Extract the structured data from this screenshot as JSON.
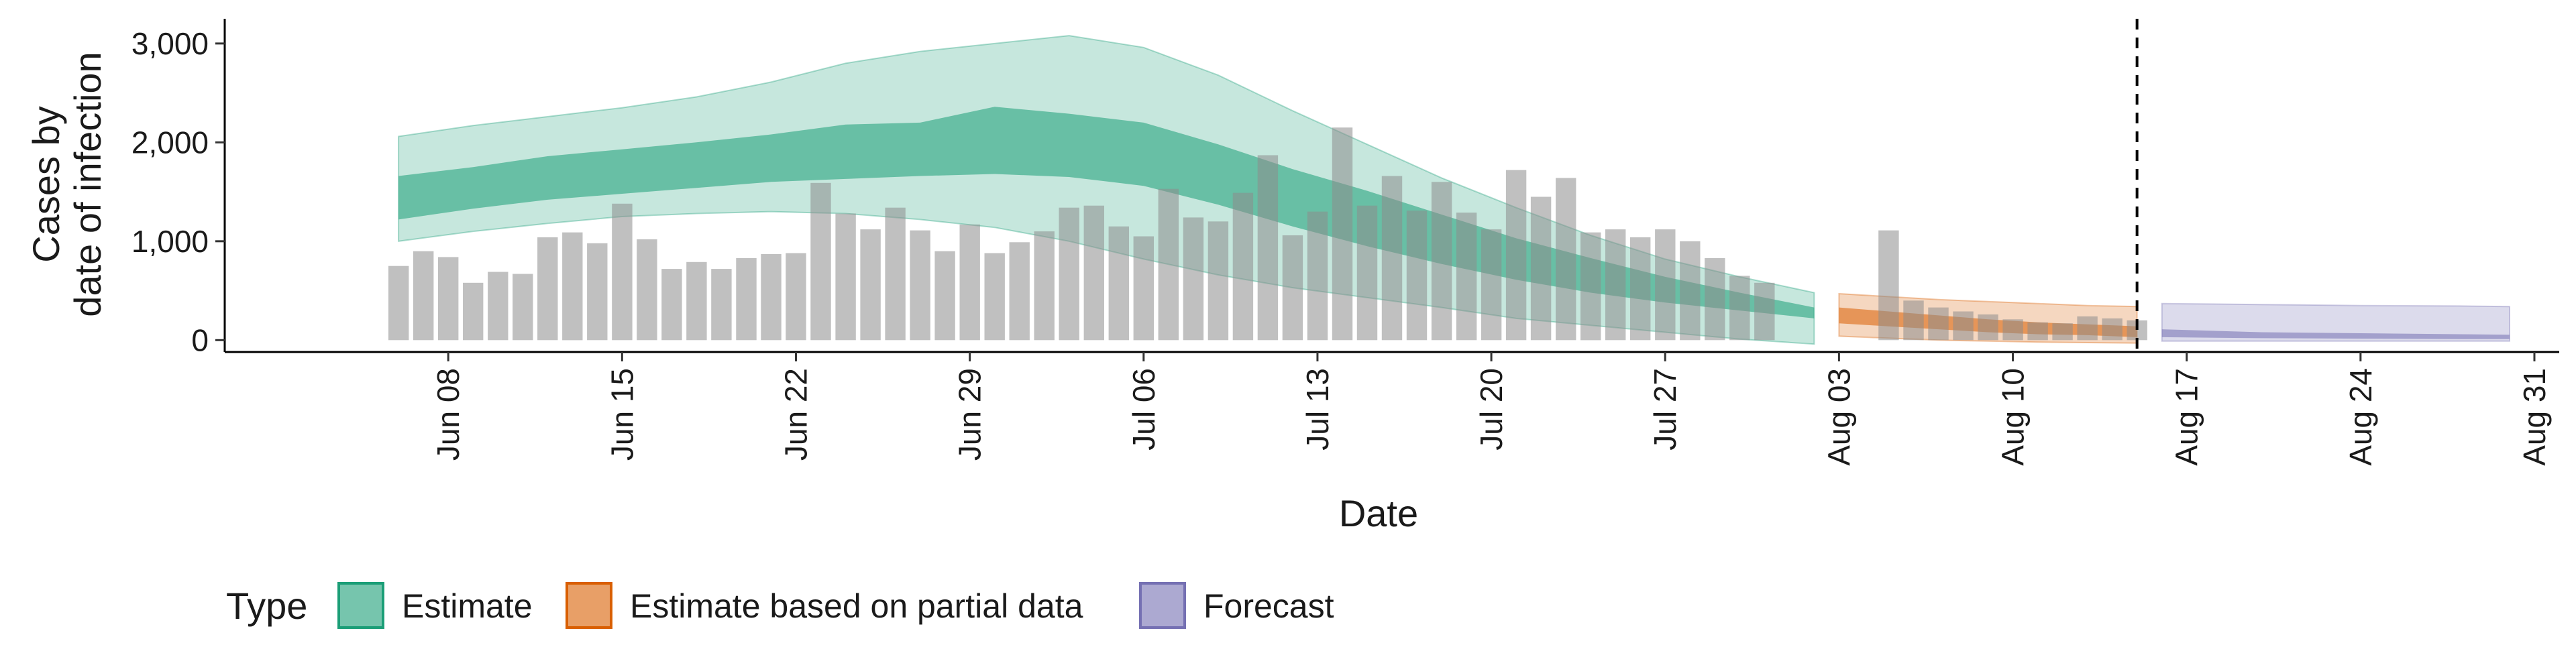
{
  "chart_data": {
    "type": "area",
    "title": "",
    "xlabel": "Date",
    "ylabel_lines": [
      "Cases by",
      "date of infection"
    ],
    "ylim": [
      -120,
      3250
    ],
    "yticks": [
      0,
      1000,
      2000,
      3000
    ],
    "ytick_labels": [
      "0",
      "1,000",
      "2,000",
      "3,000"
    ],
    "xlim": [
      "2021-05-30",
      "2021-09-01"
    ],
    "xticks": [
      "2021-06-08",
      "2021-06-15",
      "2021-06-22",
      "2021-06-29",
      "2021-07-06",
      "2021-07-13",
      "2021-07-20",
      "2021-07-27",
      "2021-08-03",
      "2021-08-10",
      "2021-08-17",
      "2021-08-24",
      "2021-08-31"
    ],
    "xtick_labels": [
      "Jun 08",
      "Jun 15",
      "Jun 22",
      "Jun 29",
      "Jul 06",
      "Jul 13",
      "Jul 20",
      "Jul 27",
      "Aug 03",
      "Aug 10",
      "Aug 17",
      "Aug 24",
      "Aug 31"
    ],
    "forecast_cutoff": "2021-08-15",
    "grid": false,
    "legend": {
      "title": "Type",
      "placement": "bottom",
      "entries": [
        {
          "label": "Estimate",
          "color": "#1b9e77"
        },
        {
          "label": "Estimate based on partial data",
          "color": "#d95f02"
        },
        {
          "label": "Forecast",
          "color": "#7570b3"
        }
      ]
    },
    "reported_cases": {
      "color": "#8c8c8c",
      "dates": [
        "2021-06-06",
        "2021-06-07",
        "2021-06-08",
        "2021-06-09",
        "2021-06-10",
        "2021-06-11",
        "2021-06-12",
        "2021-06-13",
        "2021-06-14",
        "2021-06-15",
        "2021-06-16",
        "2021-06-17",
        "2021-06-18",
        "2021-06-19",
        "2021-06-20",
        "2021-06-21",
        "2021-06-22",
        "2021-06-23",
        "2021-06-24",
        "2021-06-25",
        "2021-06-26",
        "2021-06-27",
        "2021-06-28",
        "2021-06-29",
        "2021-06-30",
        "2021-07-01",
        "2021-07-02",
        "2021-07-03",
        "2021-07-04",
        "2021-07-05",
        "2021-07-06",
        "2021-07-07",
        "2021-07-08",
        "2021-07-09",
        "2021-07-10",
        "2021-07-11",
        "2021-07-12",
        "2021-07-13",
        "2021-07-14",
        "2021-07-15",
        "2021-07-16",
        "2021-07-17",
        "2021-07-18",
        "2021-07-19",
        "2021-07-20",
        "2021-07-21",
        "2021-07-22",
        "2021-07-23",
        "2021-07-24",
        "2021-07-25",
        "2021-07-26",
        "2021-07-27",
        "2021-07-28",
        "2021-07-29",
        "2021-07-30",
        "2021-07-31",
        "2021-08-01",
        "2021-08-05",
        "2021-08-06",
        "2021-08-07",
        "2021-08-08",
        "2021-08-09",
        "2021-08-10",
        "2021-08-11",
        "2021-08-12",
        "2021-08-13",
        "2021-08-14",
        "2021-08-15"
      ],
      "values": [
        750,
        900,
        840,
        580,
        690,
        670,
        1040,
        1090,
        980,
        1380,
        1020,
        720,
        790,
        720,
        830,
        870,
        880,
        1590,
        1280,
        1120,
        1340,
        1110,
        900,
        1170,
        880,
        990,
        1100,
        1340,
        1360,
        1150,
        1050,
        1530,
        1240,
        1200,
        1490,
        1870,
        1060,
        1300,
        2150,
        1360,
        1660,
        1310,
        1600,
        1290,
        1120,
        1720,
        1450,
        1640,
        1090,
        1120,
        1040,
        1120,
        1000,
        830,
        650,
        580,
        0,
        1110,
        400,
        330,
        290,
        260,
        210,
        180,
        170,
        240,
        220,
        200
      ]
    },
    "series": [
      {
        "name": "Estimate",
        "color": "#1b9e77",
        "dates": [
          "2021-06-06",
          "2021-06-09",
          "2021-06-12",
          "2021-06-15",
          "2021-06-18",
          "2021-06-21",
          "2021-06-24",
          "2021-06-27",
          "2021-06-30",
          "2021-07-03",
          "2021-07-06",
          "2021-07-09",
          "2021-07-12",
          "2021-07-15",
          "2021-07-18",
          "2021-07-21",
          "2021-07-24",
          "2021-07-27",
          "2021-07-30",
          "2021-08-02"
        ],
        "lower_90": [
          1000,
          1100,
          1180,
          1250,
          1280,
          1300,
          1280,
          1220,
          1140,
          1000,
          820,
          660,
          530,
          430,
          330,
          220,
          150,
          80,
          10,
          -40
        ],
        "lower_50": [
          1220,
          1330,
          1420,
          1480,
          1540,
          1600,
          1630,
          1660,
          1680,
          1650,
          1560,
          1370,
          1150,
          950,
          770,
          610,
          480,
          380,
          300,
          220
        ],
        "upper_50": [
          1660,
          1750,
          1860,
          1930,
          2000,
          2080,
          2180,
          2200,
          2360,
          2290,
          2200,
          1980,
          1730,
          1510,
          1270,
          1030,
          830,
          640,
          480,
          330
        ],
        "upper_90": [
          2060,
          2170,
          2260,
          2350,
          2460,
          2610,
          2800,
          2920,
          3000,
          3080,
          2960,
          2680,
          2320,
          1980,
          1640,
          1340,
          1060,
          820,
          640,
          480
        ]
      },
      {
        "name": "Estimate based on partial data",
        "color": "#d95f02",
        "dates": [
          "2021-08-03",
          "2021-08-05",
          "2021-08-07",
          "2021-08-09",
          "2021-08-11",
          "2021-08-13",
          "2021-08-15"
        ],
        "lower_90": [
          40,
          20,
          0,
          -10,
          -20,
          -25,
          -30
        ],
        "lower_50": [
          170,
          140,
          110,
          80,
          60,
          50,
          30
        ],
        "upper_50": [
          330,
          290,
          250,
          210,
          180,
          160,
          140
        ],
        "upper_90": [
          470,
          440,
          410,
          390,
          370,
          350,
          340
        ]
      },
      {
        "name": "Forecast",
        "color": "#7570b3",
        "dates": [
          "2021-08-16",
          "2021-08-20",
          "2021-08-24",
          "2021-08-28",
          "2021-08-30"
        ],
        "lower_90": [
          -10,
          -10,
          -10,
          -10,
          -10
        ],
        "lower_50": [
          30,
          20,
          15,
          10,
          10
        ],
        "upper_50": [
          110,
          80,
          70,
          60,
          55
        ],
        "upper_90": [
          370,
          360,
          350,
          345,
          340
        ]
      }
    ]
  }
}
